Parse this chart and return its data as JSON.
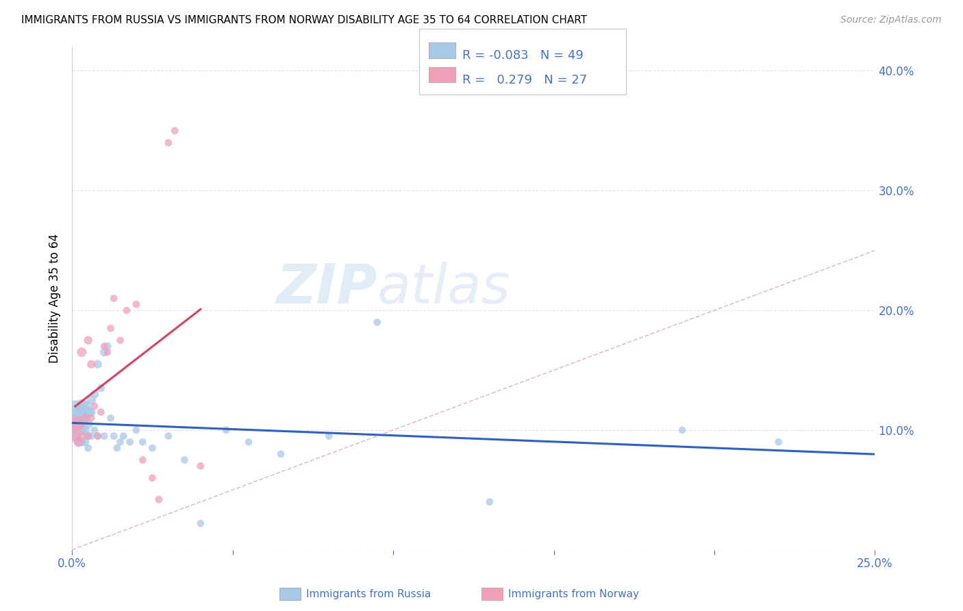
{
  "title": "IMMIGRANTS FROM RUSSIA VS IMMIGRANTS FROM NORWAY DISABILITY AGE 35 TO 64 CORRELATION CHART",
  "source": "Source: ZipAtlas.com",
  "ylabel": "Disability Age 35 to 64",
  "xlim": [
    0.0,
    0.25
  ],
  "ylim": [
    0.0,
    0.42
  ],
  "yticks": [
    0.0,
    0.1,
    0.2,
    0.3,
    0.4
  ],
  "ytick_labels": [
    "",
    "10.0%",
    "20.0%",
    "30.0%",
    "40.0%"
  ],
  "xticks": [
    0.0,
    0.05,
    0.1,
    0.15,
    0.2,
    0.25
  ],
  "xtick_labels": [
    "0.0%",
    "",
    "",
    "",
    "",
    "25.0%"
  ],
  "russia_color": "#a8c8e8",
  "norway_color": "#f0a0b8",
  "russia_line_color": "#3060c0",
  "norway_line_color": "#d84060",
  "diagonal_color": "#e0c0c8",
  "axis_color": "#4472c4",
  "grid_color": "#dce4f0",
  "watermark_zip": "ZIP",
  "watermark_atlas": "atlas",
  "legend_entries": [
    {
      "R": "-0.083",
      "N": "49"
    },
    {
      "R": " 0.279",
      "N": "27"
    }
  ],
  "russia_x": [
    0.001,
    0.001,
    0.001,
    0.002,
    0.002,
    0.002,
    0.003,
    0.003,
    0.003,
    0.003,
    0.004,
    0.004,
    0.004,
    0.004,
    0.005,
    0.005,
    0.005,
    0.005,
    0.006,
    0.006,
    0.006,
    0.007,
    0.007,
    0.008,
    0.008,
    0.009,
    0.01,
    0.01,
    0.011,
    0.012,
    0.013,
    0.014,
    0.015,
    0.016,
    0.018,
    0.02,
    0.022,
    0.025,
    0.03,
    0.035,
    0.04,
    0.048,
    0.055,
    0.065,
    0.08,
    0.095,
    0.13,
    0.19,
    0.22
  ],
  "russia_y": [
    0.115,
    0.105,
    0.095,
    0.115,
    0.1,
    0.09,
    0.12,
    0.11,
    0.1,
    0.09,
    0.12,
    0.11,
    0.1,
    0.09,
    0.115,
    0.105,
    0.095,
    0.085,
    0.125,
    0.115,
    0.095,
    0.13,
    0.1,
    0.155,
    0.095,
    0.135,
    0.165,
    0.095,
    0.17,
    0.11,
    0.095,
    0.085,
    0.09,
    0.095,
    0.09,
    0.1,
    0.09,
    0.085,
    0.095,
    0.075,
    0.022,
    0.1,
    0.09,
    0.08,
    0.095,
    0.19,
    0.04,
    0.1,
    0.09
  ],
  "russia_sizes": [
    600,
    300,
    150,
    300,
    150,
    100,
    200,
    150,
    100,
    80,
    150,
    120,
    100,
    80,
    150,
    100,
    80,
    60,
    100,
    80,
    60,
    80,
    60,
    80,
    60,
    70,
    80,
    60,
    70,
    60,
    60,
    60,
    60,
    60,
    60,
    60,
    60,
    60,
    60,
    60,
    60,
    60,
    60,
    60,
    60,
    60,
    60,
    60,
    60
  ],
  "norway_x": [
    0.001,
    0.001,
    0.002,
    0.002,
    0.003,
    0.003,
    0.004,
    0.005,
    0.005,
    0.006,
    0.006,
    0.007,
    0.008,
    0.009,
    0.01,
    0.011,
    0.012,
    0.013,
    0.015,
    0.017,
    0.02,
    0.022,
    0.025,
    0.027,
    0.03,
    0.032,
    0.04
  ],
  "norway_y": [
    0.105,
    0.095,
    0.105,
    0.09,
    0.165,
    0.095,
    0.11,
    0.175,
    0.095,
    0.155,
    0.11,
    0.12,
    0.095,
    0.115,
    0.17,
    0.165,
    0.185,
    0.21,
    0.175,
    0.2,
    0.205,
    0.075,
    0.06,
    0.042,
    0.34,
    0.35,
    0.07
  ],
  "norway_sizes": [
    300,
    150,
    150,
    100,
    100,
    80,
    80,
    80,
    60,
    80,
    60,
    60,
    60,
    60,
    60,
    60,
    60,
    60,
    60,
    60,
    60,
    60,
    60,
    60,
    60,
    60,
    60
  ]
}
